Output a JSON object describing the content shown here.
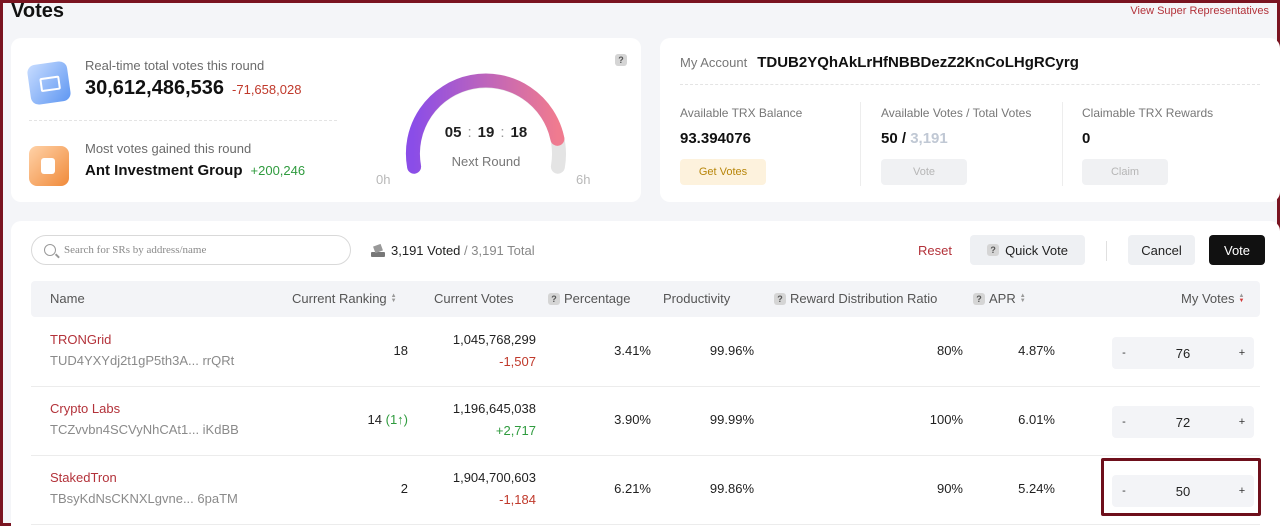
{
  "header": {
    "title": "Votes",
    "top_link": "View Super Representatives"
  },
  "stats": {
    "total_votes_label": "Real-time total votes this round",
    "total_votes_value": "30,612,486,536",
    "total_votes_delta": "-71,658,028",
    "most_gained_label": "Most votes gained this round",
    "most_gained_name": "Ant Investment Group",
    "most_gained_delta": "+200,246",
    "help": "?"
  },
  "gauge": {
    "hours": "05",
    "minutes": "19",
    "seconds": "18",
    "separator": ":",
    "caption": "Next Round",
    "min_label": "0h",
    "max_label": "6h",
    "remaining_fraction": 0.89,
    "colors": {
      "start": "#8a4de8",
      "end": "#f07b8f",
      "track": "#e4e4e4"
    }
  },
  "account": {
    "label": "My Account",
    "address": "TDUB2YQhAkLrHfNBBDezZ2KnCoLHgRCyrg",
    "balance_label": "Available TRX Balance",
    "balance_value": "93.394076",
    "get_votes_label": "Get Votes",
    "votes_label": "Available Votes / Total Votes",
    "votes_available": "50 /",
    "votes_total": "3,191",
    "vote_label": "Vote",
    "rewards_label": "Claimable TRX Rewards",
    "rewards_value": "0",
    "claim_label": "Claim"
  },
  "toolbar": {
    "search_placeholder": "Search for SRs by address/name",
    "voted_count": "3,191 Voted",
    "total_count": "/ 3,191 Total",
    "reset_label": "Reset",
    "quick_vote_label": "Quick Vote",
    "cancel_label": "Cancel",
    "vote_label": "Vote"
  },
  "table": {
    "columns": {
      "name": "Name",
      "ranking": "Current Ranking",
      "votes": "Current Votes",
      "percentage": "Percentage",
      "productivity": "Productivity",
      "reward_ratio": "Reward Distribution Ratio",
      "apr": "APR",
      "my_votes": "My Votes"
    },
    "rows": [
      {
        "name": "TRONGrid",
        "address": "TUD4YXYdj2t1gP5th3A... rrQRt",
        "ranking": "18",
        "rank_change": "",
        "votes": "1,045,768,299",
        "votes_delta": "-1,507",
        "delta_sign": "neg",
        "percentage": "3.41%",
        "productivity": "99.96%",
        "reward_ratio": "80%",
        "apr": "4.87%",
        "my_votes": "76"
      },
      {
        "name": "Crypto Labs",
        "address": "TCZvvbn4SCVyNhCAt1... iKdBB",
        "ranking": "14",
        "rank_change": "(1↑)",
        "votes": "1,196,645,038",
        "votes_delta": "+2,717",
        "delta_sign": "pos",
        "percentage": "3.90%",
        "productivity": "99.99%",
        "reward_ratio": "100%",
        "apr": "6.01%",
        "my_votes": "72"
      },
      {
        "name": "StakedTron",
        "address": "TBsyKdNsCKNXLgvne... 6paTM",
        "ranking": "2",
        "rank_change": "",
        "votes": "1,904,700,603",
        "votes_delta": "-1,184",
        "delta_sign": "neg",
        "percentage": "6.21%",
        "productivity": "99.86%",
        "reward_ratio": "90%",
        "apr": "5.24%",
        "my_votes": "50"
      }
    ],
    "stepper": {
      "minus": "-",
      "plus": "+"
    }
  }
}
